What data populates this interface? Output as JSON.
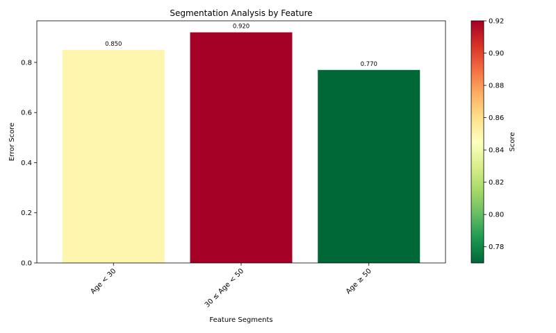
{
  "chart_data": {
    "type": "bar",
    "title": "Segmentation Analysis by Feature",
    "xlabel": "Feature Segments",
    "ylabel": "Error Score",
    "categories": [
      "Age < 30",
      "30 ≤ Age < 50",
      "Age ≥ 50"
    ],
    "values": [
      0.85,
      0.92,
      0.77
    ],
    "data_labels": [
      "0.850",
      "0.920",
      "0.770"
    ],
    "bar_colors": [
      "#fef5ae",
      "#a50026",
      "#006837"
    ],
    "ylim": [
      0,
      0.966
    ],
    "yticks": [
      0.0,
      0.2,
      0.4,
      0.6,
      0.8
    ],
    "ytick_labels": [
      "0.0",
      "0.2",
      "0.4",
      "0.6",
      "0.8"
    ],
    "grid": false,
    "colorbar": {
      "label": "Score",
      "colormap": "RdYlGn_r",
      "range": [
        0.77,
        0.92
      ],
      "ticks": [
        0.78,
        0.8,
        0.82,
        0.84,
        0.86,
        0.88,
        0.9,
        0.92
      ],
      "tick_labels": [
        "0.78",
        "0.80",
        "0.82",
        "0.84",
        "0.86",
        "0.88",
        "0.90",
        "0.92"
      ]
    }
  }
}
